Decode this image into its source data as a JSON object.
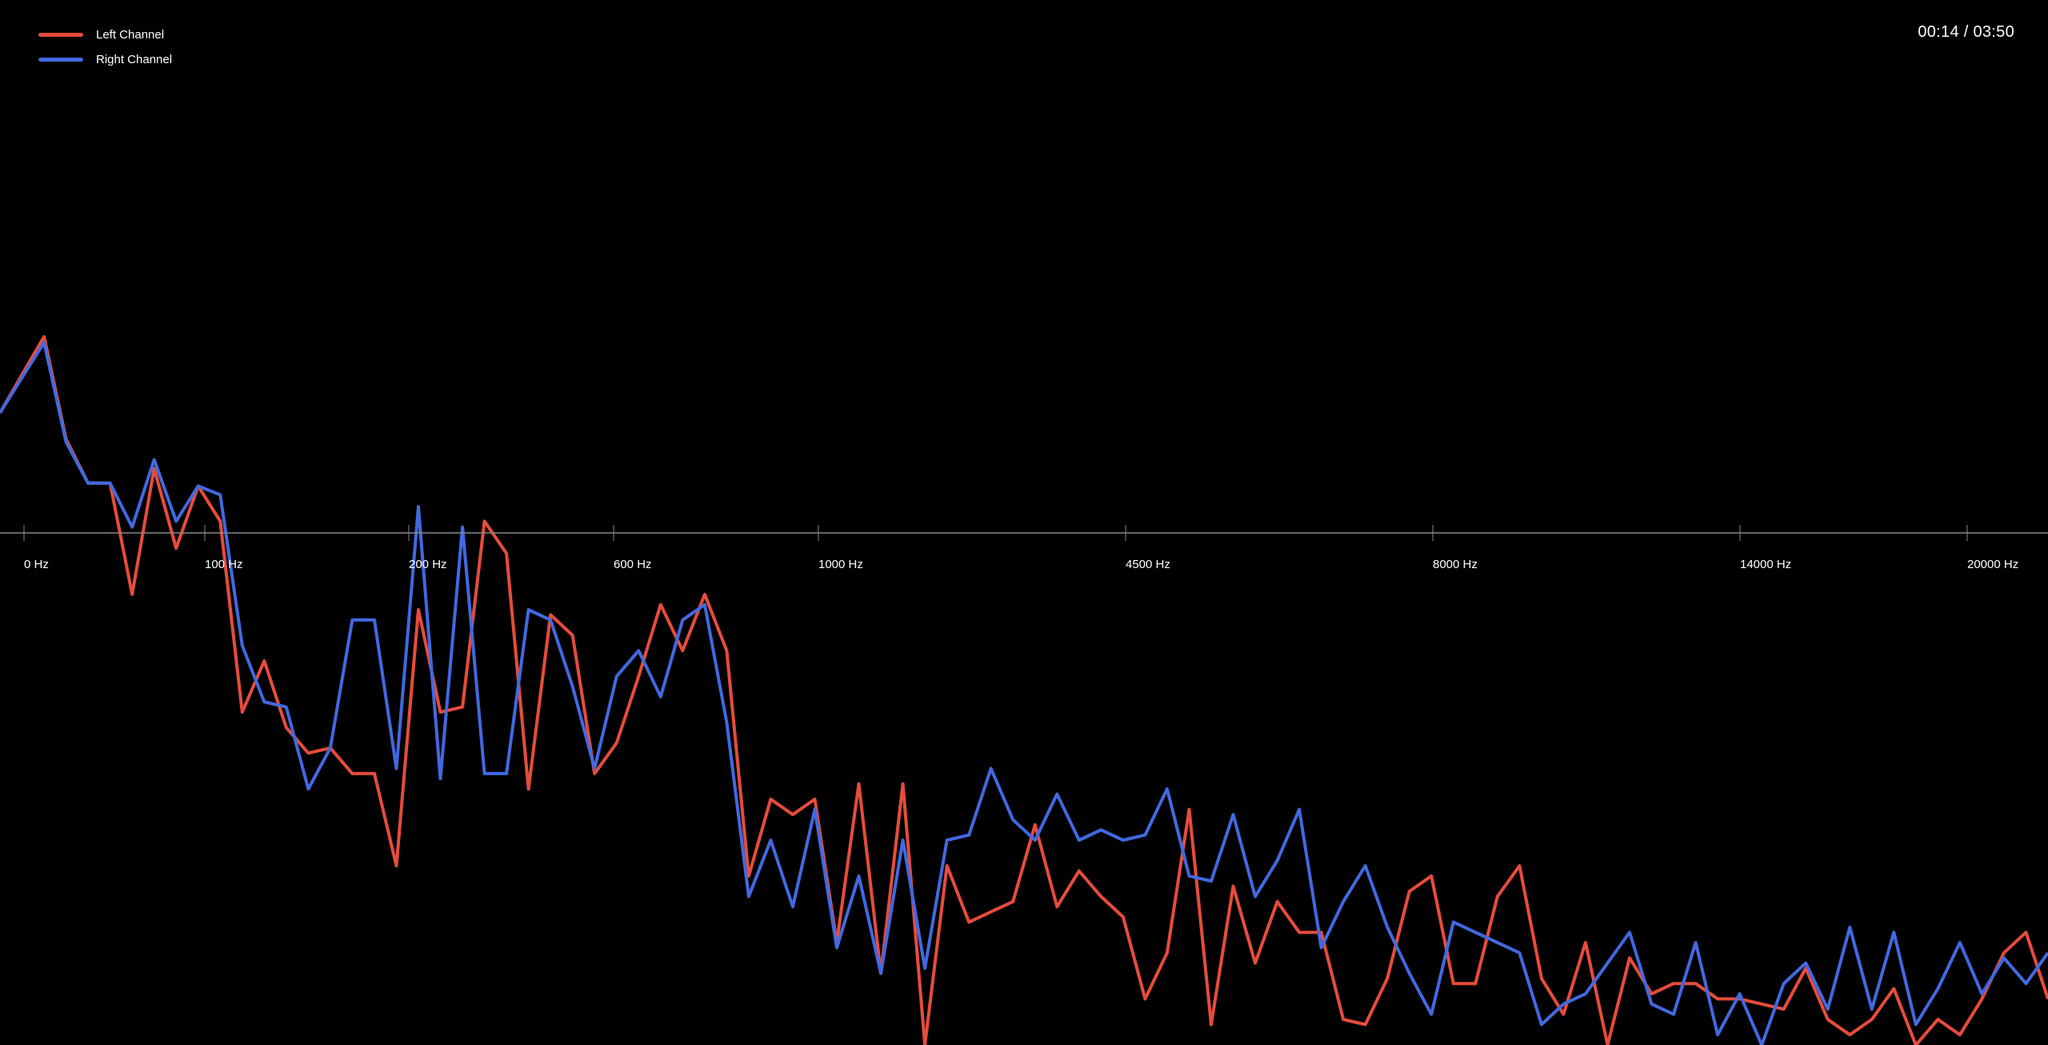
{
  "player": {
    "time_display": "00:14 / 03:50"
  },
  "legend": {
    "items": [
      {
        "label": "Left Channel",
        "color": "#e74c3c"
      },
      {
        "label": "Right Channel",
        "color": "#4169e1"
      }
    ]
  },
  "axis": {
    "labels": [
      "0 Hz",
      "100 Hz",
      "200 Hz",
      "600 Hz",
      "1000 Hz",
      "4500 Hz",
      "8000 Hz",
      "14000 Hz",
      "20000 Hz"
    ],
    "color": "#888888"
  },
  "chart_data": {
    "type": "line",
    "grid": false,
    "legend_position": "top-left",
    "ylim": [
      -1,
      1
    ],
    "x_tick_labels": [
      "0 Hz",
      "100 Hz",
      "200 Hz",
      "600 Hz",
      "1000 Hz",
      "4500 Hz",
      "8000 Hz",
      "14000 Hz",
      "20000 Hz"
    ],
    "series": [
      {
        "name": "Left Channel",
        "color": "#e74c3c",
        "values": [
          0.41,
          0.54,
          0.67,
          0.32,
          0.17,
          0.17,
          -0.12,
          0.22,
          -0.03,
          0.16,
          0.04,
          -0.35,
          -0.25,
          -0.38,
          -0.43,
          -0.42,
          -0.47,
          -0.47,
          -0.65,
          -0.15,
          -0.35,
          -0.34,
          0.04,
          -0.04,
          -0.5,
          -0.16,
          -0.2,
          -0.47,
          -0.41,
          -0.28,
          -0.14,
          -0.23,
          -0.12,
          -0.23,
          -0.67,
          -0.52,
          -0.55,
          -0.52,
          -0.8,
          -0.49,
          -0.86,
          -0.49,
          -1.0,
          -0.65,
          -0.76,
          -0.74,
          -0.72,
          -0.57,
          -0.73,
          -0.66,
          -0.71,
          -0.75,
          -0.91,
          -0.82,
          -0.54,
          -0.96,
          -0.69,
          -0.84,
          -0.72,
          -0.78,
          -0.78,
          -0.95,
          -0.96,
          -0.87,
          -0.7,
          -0.67,
          -0.88,
          -0.88,
          -0.71,
          -0.65,
          -0.87,
          -0.94,
          -0.8,
          -1.0,
          -0.83,
          -0.9,
          -0.88,
          -0.88,
          -0.91,
          -0.91,
          -0.92,
          -0.93,
          -0.85,
          -0.95,
          -0.98,
          -0.95,
          -0.89,
          -1.0,
          -0.95,
          -0.98,
          -0.91,
          -0.82,
          -0.78,
          -0.91
        ]
      },
      {
        "name": "Right Channel",
        "color": "#4169e1",
        "values": [
          0.41,
          0.53,
          0.65,
          0.31,
          0.17,
          0.17,
          0.02,
          0.25,
          0.04,
          0.16,
          0.13,
          -0.22,
          -0.33,
          -0.34,
          -0.5,
          -0.42,
          -0.17,
          -0.17,
          -0.46,
          0.09,
          -0.48,
          0.02,
          -0.47,
          -0.47,
          -0.15,
          -0.17,
          -0.3,
          -0.46,
          -0.28,
          -0.23,
          -0.32,
          -0.17,
          -0.14,
          -0.37,
          -0.71,
          -0.6,
          -0.73,
          -0.54,
          -0.81,
          -0.67,
          -0.86,
          -0.6,
          -0.85,
          -0.6,
          -0.59,
          -0.46,
          -0.56,
          -0.6,
          -0.51,
          -0.6,
          -0.58,
          -0.6,
          -0.59,
          -0.5,
          -0.67,
          -0.68,
          -0.55,
          -0.71,
          -0.64,
          -0.54,
          -0.81,
          -0.72,
          -0.65,
          -0.77,
          -0.86,
          -0.94,
          -0.76,
          -0.78,
          -0.8,
          -0.82,
          -0.96,
          -0.92,
          -0.9,
          -0.84,
          -0.78,
          -0.92,
          -0.94,
          -0.8,
          -0.98,
          -0.9,
          -1.0,
          -0.88,
          -0.84,
          -0.93,
          -0.77,
          -0.93,
          -0.78,
          -0.96,
          -0.89,
          -0.8,
          -0.9,
          -0.83,
          -0.88,
          -0.82
        ]
      }
    ]
  }
}
